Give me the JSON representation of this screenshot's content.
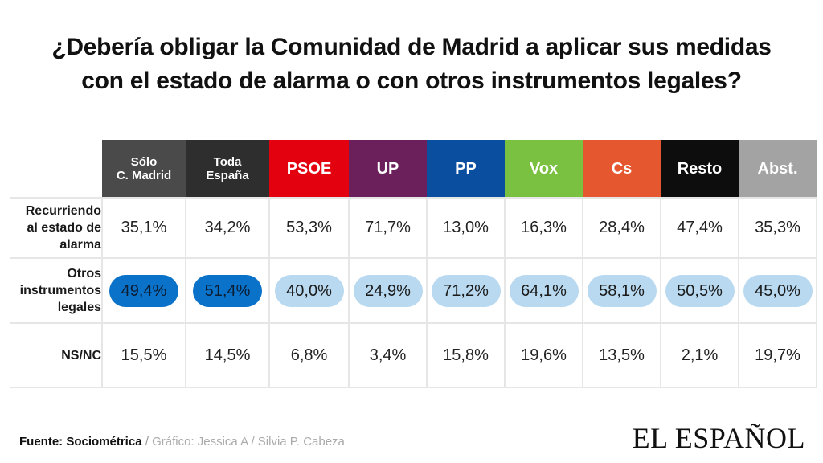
{
  "title": {
    "line1": "¿Debería obligar la Comunidad de Madrid a aplicar sus medidas",
    "line2": "con el estado de alarma o con otros instrumentos legales?"
  },
  "chart_data": {
    "type": "table",
    "columns": [
      {
        "label_lines": [
          "Sólo",
          "C. Madrid"
        ],
        "color": "#4a4a4a",
        "small": true
      },
      {
        "label_lines": [
          "Toda",
          "España"
        ],
        "color": "#2e2e2e",
        "small": true
      },
      {
        "label_lines": [
          "PSOE"
        ],
        "color": "#e3000f"
      },
      {
        "label_lines": [
          "UP"
        ],
        "color": "#6b1f5b"
      },
      {
        "label_lines": [
          "PP"
        ],
        "color": "#0a4ea0"
      },
      {
        "label_lines": [
          "Vox"
        ],
        "color": "#7ac142"
      },
      {
        "label_lines": [
          "Cs"
        ],
        "color": "#e5582f"
      },
      {
        "label_lines": [
          "Resto"
        ],
        "color": "#0d0d0d"
      },
      {
        "label_lines": [
          "Abst."
        ],
        "color": "#a3a3a3"
      }
    ],
    "rows": [
      {
        "label_lines": [
          "Recurriendo",
          "al estado de",
          "alarma"
        ],
        "values": [
          "35,1%",
          "34,2%",
          "53,3%",
          "71,7%",
          "13,0%",
          "16,3%",
          "28,4%",
          "47,4%",
          "35,3%"
        ],
        "highlight": [
          "",
          "",
          "",
          "",
          "",
          "",
          "",
          "",
          ""
        ]
      },
      {
        "label_lines": [
          "Otros",
          "instrumentos",
          "legales"
        ],
        "values": [
          "49,4%",
          "51,4%",
          "40,0%",
          "24,9%",
          "71,2%",
          "64,1%",
          "58,1%",
          "50,5%",
          "45,0%"
        ],
        "highlight": [
          "dark",
          "dark",
          "light",
          "light",
          "light",
          "light",
          "light",
          "light",
          "light"
        ]
      },
      {
        "label_lines": [
          "NS/NC"
        ],
        "values": [
          "15,5%",
          "14,5%",
          "6,8%",
          "3,4%",
          "15,8%",
          "19,6%",
          "13,5%",
          "2,1%",
          "19,7%"
        ],
        "highlight": [
          "",
          "",
          "",
          "",
          "",
          "",
          "",
          "",
          ""
        ]
      }
    ],
    "highlight_colors": {
      "dark": "#0b72c9",
      "light": "#b8d9f0"
    }
  },
  "footer": {
    "source": "Fuente: Sociométrica",
    "separator": " / ",
    "credit": "Gráfico: Jessica A / Silvia P. Cabeza"
  },
  "logo": {
    "text": "EL ESPAÑOL"
  }
}
